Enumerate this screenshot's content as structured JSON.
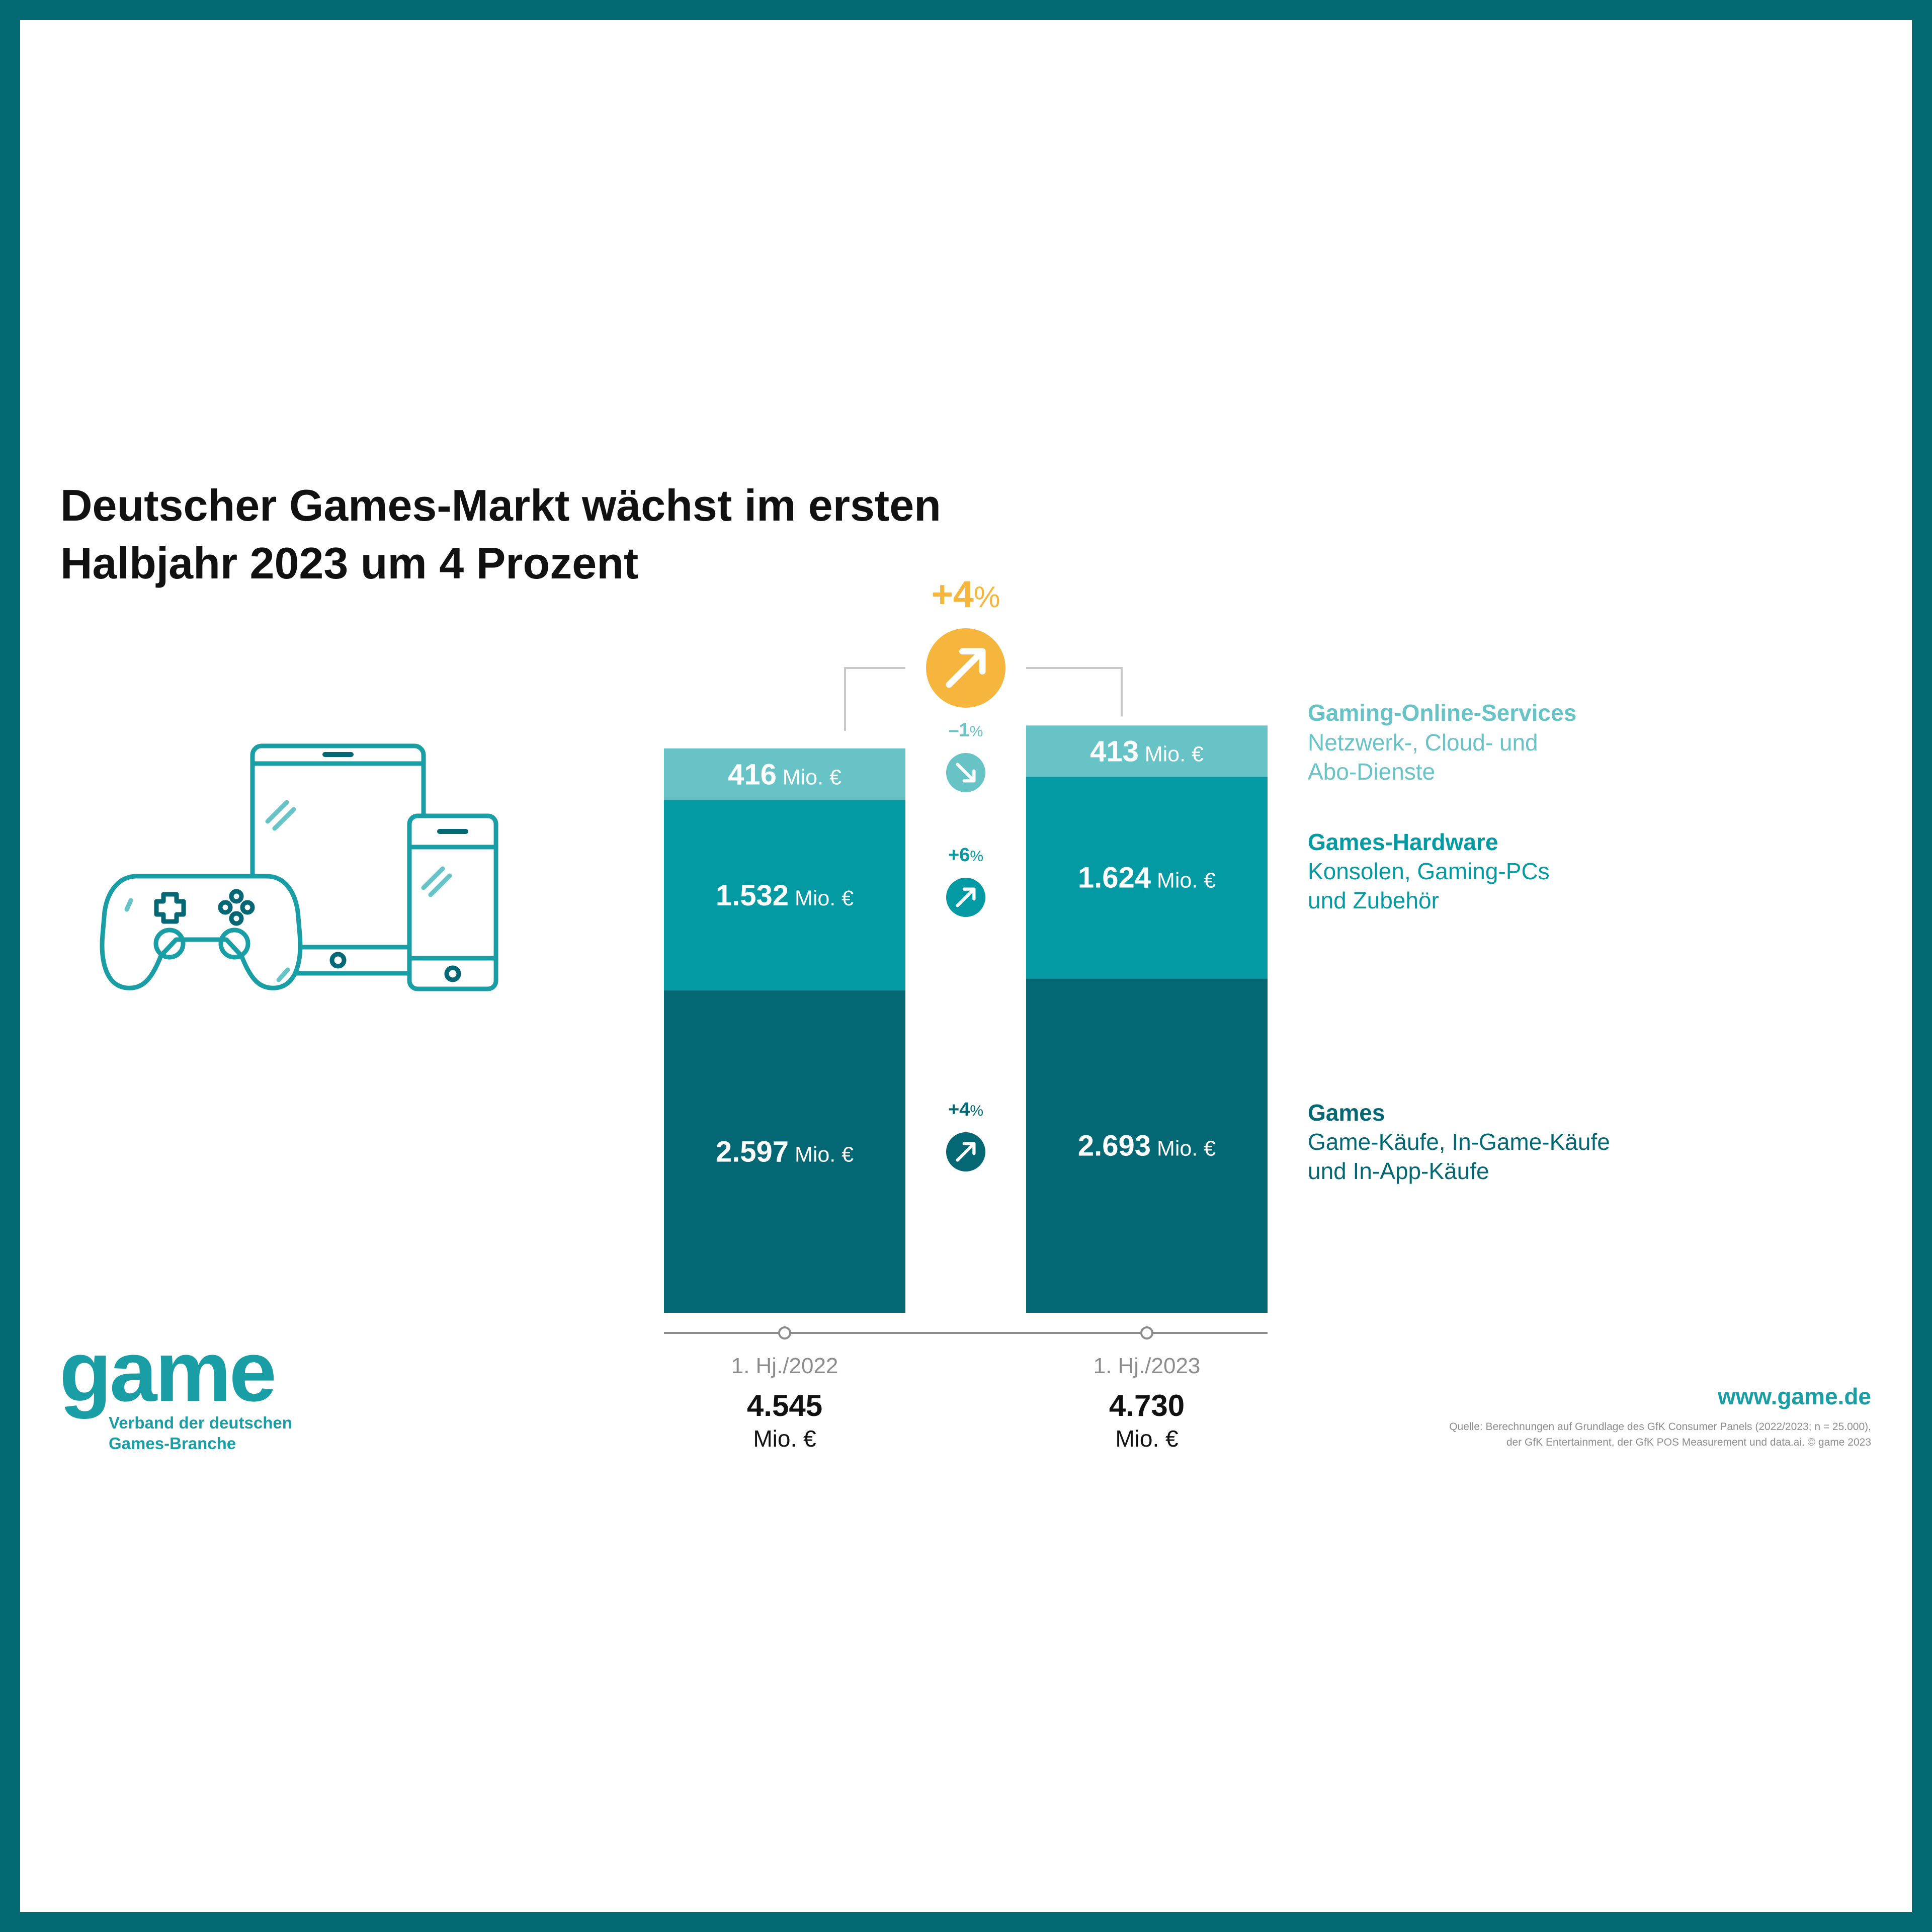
{
  "title": {
    "line1": "Deutscher Games-Markt wächst im ersten",
    "line2": "Halbjahr 2023 um 4 Prozent"
  },
  "colors": {
    "frame": "#036a74",
    "games": "#036874",
    "hardware": "#049aa4",
    "online": "#68c3c6",
    "orange": "#f6b63d",
    "gray": "#8c8c8c",
    "text": "#111111"
  },
  "icons": {
    "illustration": "controller-tablet-phone-icon",
    "arrow_up": "arrow-up-right-icon",
    "arrow_down": "arrow-down-right-icon",
    "axis_point": "circle-marker-icon"
  },
  "chart_data": {
    "type": "bar",
    "stacked": true,
    "unit": "Mio. €",
    "categories": [
      "1. Hj./2022",
      "1. Hj./2023"
    ],
    "series": [
      {
        "name": "Games",
        "values": [
          2597,
          2693
        ],
        "labels": [
          "2.597",
          "2.693"
        ],
        "change": {
          "text": "+4",
          "pct": "%",
          "direction": "up"
        }
      },
      {
        "name": "Games-Hardware",
        "values": [
          1532,
          1624
        ],
        "labels": [
          "1.532",
          "1.624"
        ],
        "change": {
          "text": "+6",
          "pct": "%",
          "direction": "up"
        }
      },
      {
        "name": "Gaming-Online-Services",
        "values": [
          416,
          413
        ],
        "labels": [
          "416",
          "413"
        ],
        "change": {
          "text": "–1",
          "pct": "%",
          "direction": "down"
        }
      }
    ],
    "totals": {
      "values": [
        4545,
        4730
      ],
      "labels": [
        "4.545",
        "4.730"
      ],
      "unit": "Mio. €"
    },
    "total_change": {
      "text": "+4",
      "pct": "%",
      "direction": "up"
    },
    "legend": [
      {
        "title": "Gaming-Online-Services",
        "lines": [
          "Netzwerk-, Cloud- und",
          "Abo-Dienste"
        ]
      },
      {
        "title": "Games-Hardware",
        "lines": [
          "Konsolen, Gaming-PCs",
          "und Zubehör"
        ]
      },
      {
        "title": "Games",
        "lines": [
          "Game-Käufe, In-Game-Käufe",
          "und In-App-Käufe"
        ]
      }
    ]
  },
  "branding": {
    "logo": "game",
    "tagline_line1": "Verband der deutschen",
    "tagline_line2": "Games-Branche",
    "url": "www.game.de"
  },
  "source": {
    "line1": "Quelle: Berechnungen auf Grundlage des GfK Consumer Panels (2022/2023; n = 25.000),",
    "line2": "der GfK Entertainment, der GfK POS Measurement und data.ai. © game 2023"
  }
}
